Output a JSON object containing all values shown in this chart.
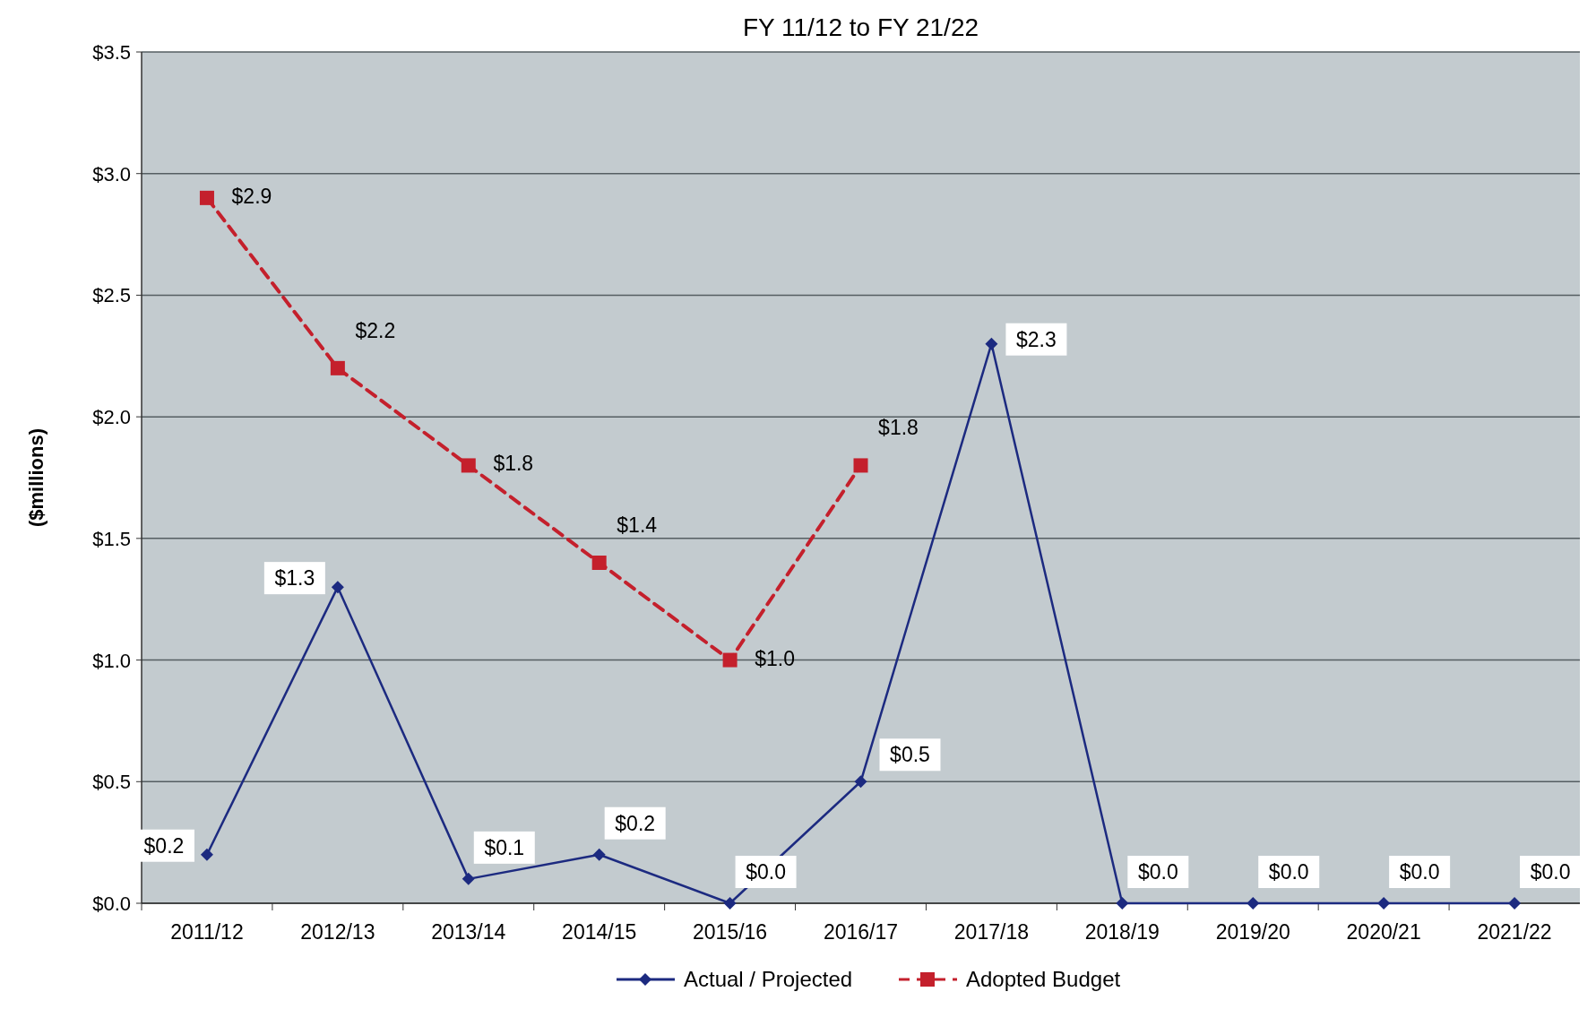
{
  "chart_data": {
    "type": "line",
    "title": "FY 11/12 to FY 21/22",
    "ylabel": "($millions)",
    "categories": [
      "2011/12",
      "2012/13",
      "2013/14",
      "2014/15",
      "2015/16",
      "2016/17",
      "2017/18",
      "2018/19",
      "2019/20",
      "2020/21",
      "2021/22"
    ],
    "series": [
      {
        "name": "Actual / Projected",
        "color": "#1c2a80",
        "marker": "diamond",
        "line_style": "solid",
        "values": [
          0.2,
          1.3,
          0.1,
          0.2,
          0.0,
          0.5,
          2.3,
          0.0,
          0.0,
          0.0,
          0.0
        ],
        "value_labels": [
          "$0.2",
          "$1.3",
          "$0.1",
          "$0.2",
          "$0.0",
          "$0.5",
          "$2.3",
          "$0.0",
          "$0.0",
          "$0.0",
          "$0.0"
        ]
      },
      {
        "name": "Adopted Budget",
        "color": "#c4202c",
        "marker": "square",
        "line_style": "dashed",
        "values": [
          2.9,
          2.2,
          1.8,
          1.4,
          1.0,
          1.8,
          null,
          null,
          null,
          null,
          null
        ],
        "value_labels": [
          "$2.9",
          "$2.2",
          "$1.8",
          "$1.4",
          "$1.0",
          "$1.8",
          null,
          null,
          null,
          null,
          null
        ]
      }
    ],
    "ylim": [
      0,
      3.5
    ],
    "yticks": [
      {
        "value": 0,
        "label": "$0.0"
      },
      {
        "value": 0.5,
        "label": "$0.5"
      },
      {
        "value": 1,
        "label": "$1.0"
      },
      {
        "value": 1.5,
        "label": "$1.5"
      },
      {
        "value": 2,
        "label": "$2.0"
      },
      {
        "value": 2.5,
        "label": "$2.5"
      },
      {
        "value": 3,
        "label": "$3.0"
      },
      {
        "value": 3.5,
        "label": "$3.5"
      }
    ],
    "grid": "y",
    "legend": "bottom"
  }
}
